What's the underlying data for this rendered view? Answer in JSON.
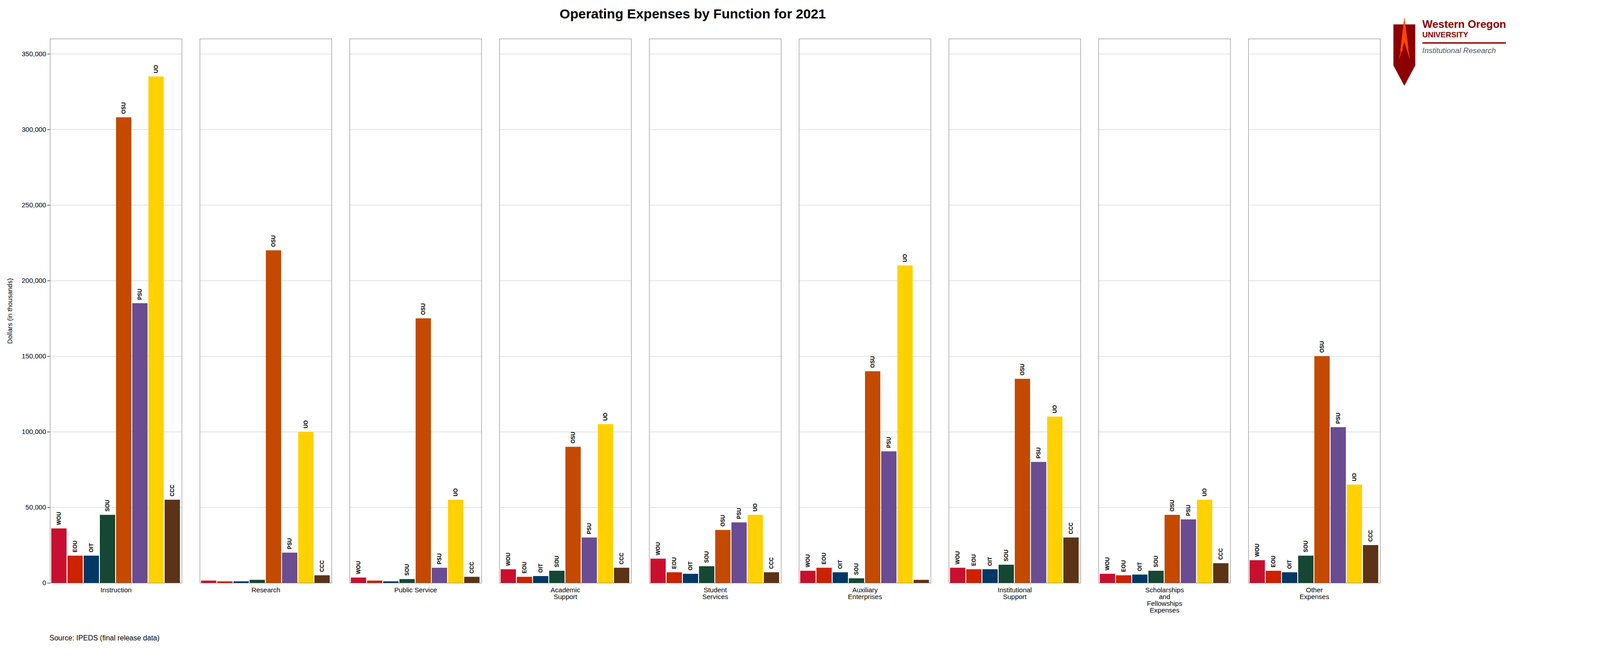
{
  "chart_data": {
    "type": "bar",
    "title": "Operating Expenses by Function for 2021",
    "ylabel": "Dollars (in thousands)",
    "caption": "Source: IPEDS (final release data)",
    "categories": [
      "Instruction",
      "Research",
      "Public Service",
      "Academic\nSupport",
      "Student\nServices",
      "Auxiliary\nEnterprises",
      "Institutional\nSupport",
      "Scholarships\nand\nFellowships\nExpenses",
      "Other\nExpenses"
    ],
    "series": [
      {
        "name": "WOU",
        "color": "#C8102E",
        "values": [
          36000,
          1500,
          3500,
          9000,
          16000,
          8000,
          10000,
          6000,
          15000
        ]
      },
      {
        "name": "EOU",
        "color": "#CC2200",
        "values": [
          18000,
          1000,
          1500,
          4000,
          7000,
          10000,
          9000,
          5000,
          8000
        ]
      },
      {
        "name": "OIT",
        "color": "#003865",
        "values": [
          18000,
          1000,
          1000,
          4500,
          6000,
          7000,
          9000,
          5500,
          7000
        ]
      },
      {
        "name": "SOU",
        "color": "#154734",
        "values": [
          45000,
          2000,
          2500,
          8000,
          11000,
          3000,
          12000,
          8000,
          18000
        ]
      },
      {
        "name": "OSU",
        "color": "#C34A00",
        "values": [
          308000,
          220000,
          175000,
          90000,
          35000,
          140000,
          135000,
          45000,
          150000
        ]
      },
      {
        "name": "PSU",
        "color": "#6A4C93",
        "values": [
          185000,
          20000,
          10000,
          30000,
          40000,
          87000,
          80000,
          42000,
          103000
        ]
      },
      {
        "name": "UO",
        "color": "#FFD100",
        "values": [
          335000,
          100000,
          55000,
          105000,
          45000,
          210000,
          110000,
          55000,
          65000
        ]
      },
      {
        "name": "CCC",
        "color": "#5C3317",
        "values": [
          55000,
          5000,
          4000,
          10000,
          7000,
          2000,
          30000,
          13000,
          25000
        ]
      }
    ],
    "ylim": [
      0,
      360000
    ],
    "yticks": [
      0,
      {
        "value": 50000,
        "label": "50,000"
      },
      {
        "value": 100000,
        "label": "100,000"
      },
      {
        "value": 150000,
        "label": "150,000"
      },
      {
        "value": 200000,
        "label": "200,000"
      },
      {
        "value": 250000,
        "label": "250,000"
      },
      {
        "value": 300000,
        "label": "300,000"
      },
      {
        "value": 350000,
        "label": "350,000"
      }
    ],
    "grid": true,
    "annotations": [
      {
        "text": "Western Oregon"
      },
      {
        "text": "UNIVERSITY"
      },
      {
        "text": "Institutional Research"
      },
      {
        "text": "WOU",
        "series": "WOU",
        "category": "Instruction"
      },
      {
        "text": "WOU",
        "series": "WOU",
        "category": "Public Service"
      },
      {
        "text": "WOU",
        "series": "WOU",
        "category": "Academic\nSupport"
      },
      {
        "text": "WOU",
        "series": "WOU",
        "category": "Student\nServices"
      },
      {
        "text": "WOU",
        "series": "WOU",
        "category": "Auxiliary\nEnterprises"
      },
      {
        "text": "WOU",
        "series": "WOU",
        "category": "Institutional\nSupport"
      },
      {
        "text": "WOU",
        "series": "WOU",
        "category": "Scholarships\nand\nFellowships\nExpenses"
      },
      {
        "text": "WOU",
        "series": "WOU",
        "category": "Other\nExpenses"
      },
      {
        "text": "EOU",
        "series": "EOU",
        "category": "Instruction"
      },
      {
        "text": "EOU",
        "series": "EOU",
        "category": "Academic\nSupport"
      },
      {
        "text": "EOU",
        "series": "EOU",
        "category": "Student\nServices"
      },
      {
        "text": "EOU",
        "series": "EOU",
        "category": "Auxiliary\nEnterprises"
      },
      {
        "text": "EOU",
        "series": "EOU",
        "category": "Institutional\nSupport"
      },
      {
        "text": "EOU",
        "series": "EOU",
        "category": "Scholarships\nand\nFellowships\nExpenses"
      },
      {
        "text": "EOU",
        "series": "EOU",
        "category": "Other\nExpenses"
      },
      {
        "text": "OIT",
        "series": "OIT",
        "category": "Instruction"
      },
      {
        "text": "OIT",
        "series": "OIT",
        "category": "Academic\nSupport"
      },
      {
        "text": "OIT",
        "series": "OIT",
        "category": "Student\nServices"
      },
      {
        "text": "OIT",
        "series": "OIT",
        "category": "Auxiliary\nEnterprises"
      },
      {
        "text": "OIT",
        "series": "OIT",
        "category": "Institutional\nSupport"
      },
      {
        "text": "OIT",
        "series": "OIT",
        "category": "Scholarships\nand\nFellowships\nExpenses"
      },
      {
        "text": "OIT",
        "series": "OIT",
        "category": "Other\nExpenses"
      },
      {
        "text": "SOU",
        "series": "SOU",
        "category": "Instruction"
      },
      {
        "text": "SOU",
        "series": "SOU",
        "category": "Public Service"
      },
      {
        "text": "SOU",
        "series": "SOU",
        "category": "Academic\nSupport"
      },
      {
        "text": "SOU",
        "series": "SOU",
        "category": "Student\nServices"
      },
      {
        "text": "SOU",
        "series": "SOU",
        "category": "Auxiliary\nEnterprises"
      },
      {
        "text": "SOU",
        "series": "SOU",
        "category": "Institutional\nSupport"
      },
      {
        "text": "SOU",
        "series": "SOU",
        "category": "Scholarships\nand\nFellowships\nExpenses"
      },
      {
        "text": "SOU",
        "series": "SOU",
        "category": "Other\nExpenses"
      },
      {
        "text": "OSU",
        "series": "OSU",
        "category": "Instruction"
      },
      {
        "text": "OSU",
        "series": "OSU",
        "category": "Research"
      },
      {
        "text": "OSU",
        "series": "OSU",
        "category": "Public Service"
      },
      {
        "text": "OSU",
        "series": "OSU",
        "category": "Academic\nSupport"
      },
      {
        "text": "OSU",
        "series": "OSU",
        "category": "Student\nServices"
      },
      {
        "text": "OSU",
        "series": "OSU",
        "category": "Auxiliary\nEnterprises"
      },
      {
        "text": "OSU",
        "series": "OSU",
        "category": "Institutional\nSupport"
      },
      {
        "text": "OSU",
        "series": "OSU",
        "category": "Scholarships\nand\nFellowships\nExpenses"
      },
      {
        "text": "OSU",
        "series": "OSU",
        "category": "Other\nExpenses"
      },
      {
        "text": "PSU",
        "series": "PSU",
        "category": "Instruction"
      },
      {
        "text": "PSU",
        "series": "PSU",
        "category": "Research"
      },
      {
        "text": "PSU",
        "series": "PSU",
        "category": "Public Service"
      },
      {
        "text": "PSU",
        "series": "PSU",
        "category": "Academic\nSupport"
      },
      {
        "text": "PSU",
        "series": "PSU",
        "category": "Student\nServices"
      },
      {
        "text": "PSU",
        "series": "PSU",
        "category": "Auxiliary\nEnterprises"
      },
      {
        "text": "PSU",
        "series": "PSU",
        "category": "Institutional\nSupport"
      },
      {
        "text": "PSU",
        "series": "PSU",
        "category": "Scholarships\nand\nFellowships\nExpenses"
      },
      {
        "text": "PSU",
        "series": "PSU",
        "category": "Other\nExpenses"
      },
      {
        "text": "UO",
        "series": "UO",
        "category": "Instruction"
      },
      {
        "text": "UO",
        "series": "UO",
        "category": "Research"
      },
      {
        "text": "UO",
        "series": "UO",
        "category": "Public Service"
      },
      {
        "text": "UO",
        "series": "UO",
        "category": "Academic\nSupport"
      },
      {
        "text": "UO",
        "series": "UO",
        "category": "Student\nServices"
      },
      {
        "text": "UO",
        "series": "UO",
        "category": "Auxiliary\nEnterprises"
      },
      {
        "text": "UO",
        "series": "UO",
        "category": "Institutional\nSupport"
      },
      {
        "text": "UO",
        "series": "UO",
        "category": "Scholarships\nand\nFellowships\nExpenses"
      },
      {
        "text": "UO",
        "series": "UO",
        "category": "Other\nExpenses"
      },
      {
        "text": "CCC",
        "series": "CCC",
        "category": "Instruction"
      },
      {
        "text": "CCC",
        "series": "CCC",
        "category": "Research"
      },
      {
        "text": "CCC",
        "series": "CCC",
        "category": "Public Service"
      },
      {
        "text": "CCC",
        "series": "CCC",
        "category": "Academic\nSupport"
      },
      {
        "text": "CCC",
        "series": "CCC",
        "category": "Student\nServices"
      },
      {
        "text": "CCC",
        "series": "CCC",
        "category": "Institutional\nSupport"
      },
      {
        "text": "CCC",
        "series": "CCC",
        "category": "Scholarships\nand\nFellowships\nExpenses"
      },
      {
        "text": "CCC",
        "series": "CCC",
        "category": "Other\nExpenses"
      }
    ]
  }
}
